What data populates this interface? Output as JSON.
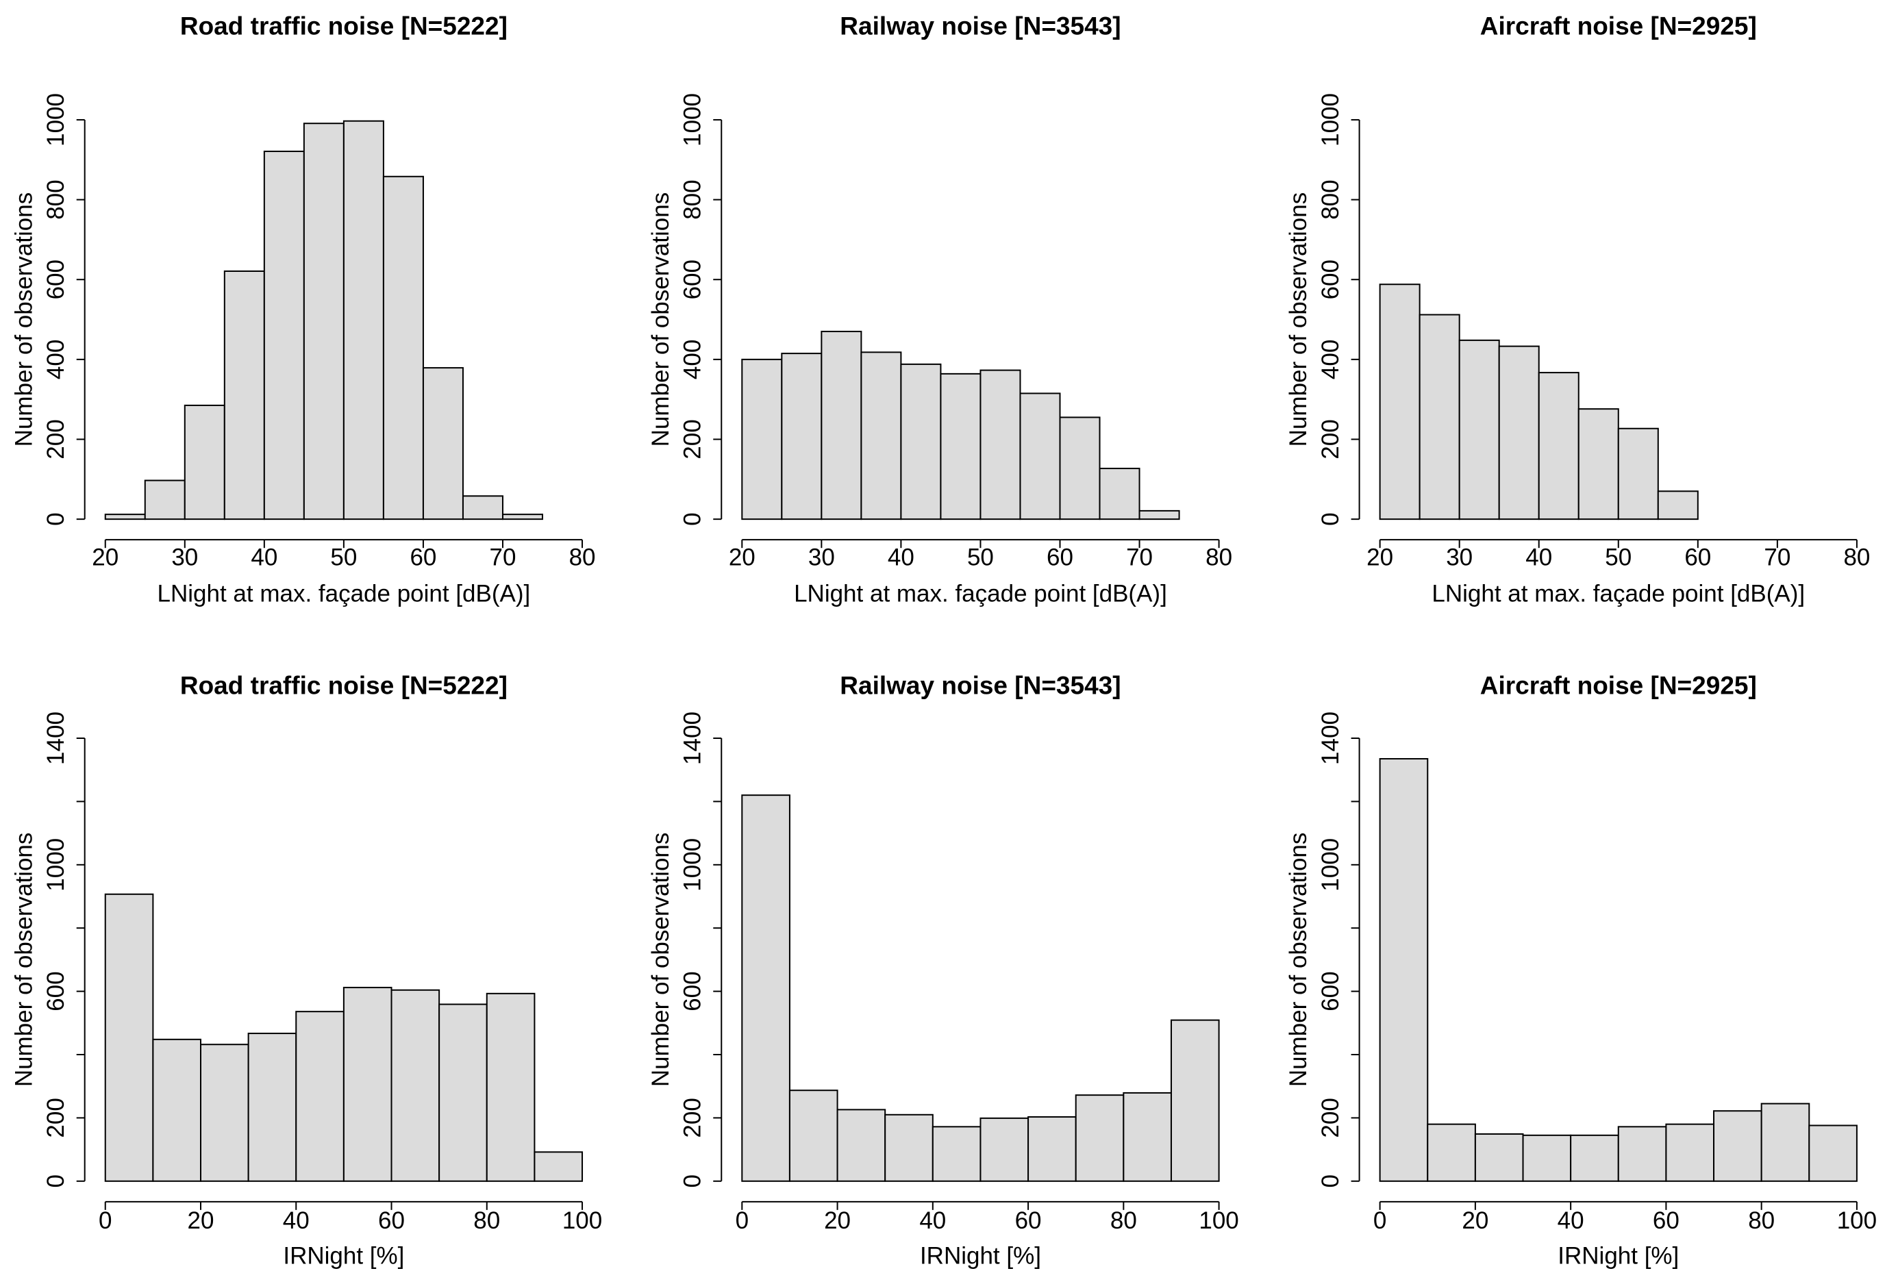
{
  "chart_data": [
    {
      "type": "histogram",
      "title": "Road traffic noise [N=5222]",
      "xlabel": "LNight at max. façade point [dB(A)]",
      "ylabel": "Number of observations",
      "bins": [
        20,
        25,
        30,
        35,
        40,
        45,
        50,
        55,
        60,
        65,
        70,
        75
      ],
      "values": [
        12,
        97,
        285,
        621,
        921,
        991,
        997,
        858,
        379,
        58,
        12
      ],
      "xlim": [
        20,
        80
      ],
      "xticks": [
        20,
        30,
        40,
        50,
        60,
        70,
        80
      ],
      "ylim": [
        0,
        1000
      ],
      "yticks": [
        0,
        200,
        400,
        600,
        800,
        1000
      ],
      "color": "#dcdcdc"
    },
    {
      "type": "histogram",
      "title": "Railway noise [N=3543]",
      "xlabel": "LNight at max. façade point [dB(A)]",
      "ylabel": "Number of observations",
      "bins": [
        20,
        25,
        30,
        35,
        40,
        45,
        50,
        55,
        60,
        65,
        70,
        75,
        80
      ],
      "values": [
        400,
        415,
        470,
        418,
        388,
        364,
        373,
        315,
        255,
        127,
        21,
        0
      ],
      "xlim": [
        20,
        80
      ],
      "xticks": [
        20,
        30,
        40,
        50,
        60,
        70,
        80
      ],
      "ylim": [
        0,
        1000
      ],
      "yticks": [
        0,
        200,
        400,
        600,
        800,
        1000
      ],
      "color": "#dcdcdc"
    },
    {
      "type": "histogram",
      "title": "Aircraft noise [N=2925]",
      "xlabel": "LNight at max. façade point [dB(A)]",
      "ylabel": "Number of observations",
      "bins": [
        20,
        25,
        30,
        35,
        40,
        45,
        50,
        55,
        60,
        65
      ],
      "values": [
        588,
        512,
        448,
        433,
        367,
        276,
        227,
        70,
        0
      ],
      "xlim": [
        20,
        80
      ],
      "xticks": [
        20,
        30,
        40,
        50,
        60,
        70,
        80
      ],
      "ylim": [
        0,
        1000
      ],
      "yticks": [
        0,
        200,
        400,
        600,
        800,
        1000
      ],
      "color": "#dcdcdc"
    },
    {
      "type": "histogram",
      "title": "Road traffic noise [N=5222]",
      "xlabel": "IRNight [%]",
      "ylabel": "Number of observations",
      "bins": [
        0,
        10,
        20,
        30,
        40,
        50,
        60,
        70,
        80,
        90,
        100
      ],
      "values": [
        907,
        448,
        432,
        467,
        536,
        612,
        604,
        559,
        593,
        92
      ],
      "xlim": [
        0,
        100
      ],
      "xticks": [
        0,
        20,
        40,
        60,
        80,
        100
      ],
      "ylim": [
        0,
        1400
      ],
      "yticks": [
        0,
        200,
        600,
        1000,
        1400
      ],
      "minor_yticks": [
        400,
        800,
        1200
      ],
      "color": "#dcdcdc"
    },
    {
      "type": "histogram",
      "title": "Railway noise [N=3543]",
      "xlabel": "IRNight [%]",
      "ylabel": "Number of observations",
      "bins": [
        0,
        10,
        20,
        30,
        40,
        50,
        60,
        70,
        80,
        90,
        100
      ],
      "values": [
        1220,
        287,
        226,
        210,
        172,
        199,
        203,
        272,
        279,
        509
      ],
      "xlim": [
        0,
        100
      ],
      "xticks": [
        0,
        20,
        40,
        60,
        80,
        100
      ],
      "ylim": [
        0,
        1400
      ],
      "yticks": [
        0,
        200,
        600,
        1000,
        1400
      ],
      "minor_yticks": [
        400,
        800,
        1200
      ],
      "color": "#dcdcdc"
    },
    {
      "type": "histogram",
      "title": "Aircraft noise [N=2925]",
      "xlabel": "IRNight [%]",
      "ylabel": "Number of observations",
      "bins": [
        0,
        10,
        20,
        30,
        40,
        50,
        60,
        70,
        80,
        90,
        100
      ],
      "values": [
        1335,
        180,
        149,
        145,
        145,
        172,
        180,
        222,
        245,
        176
      ],
      "xlim": [
        0,
        100
      ],
      "xticks": [
        0,
        20,
        40,
        60,
        80,
        100
      ],
      "ylim": [
        0,
        1400
      ],
      "yticks": [
        0,
        200,
        600,
        1000,
        1400
      ],
      "minor_yticks": [
        400,
        800,
        1200
      ],
      "color": "#dcdcdc"
    }
  ]
}
